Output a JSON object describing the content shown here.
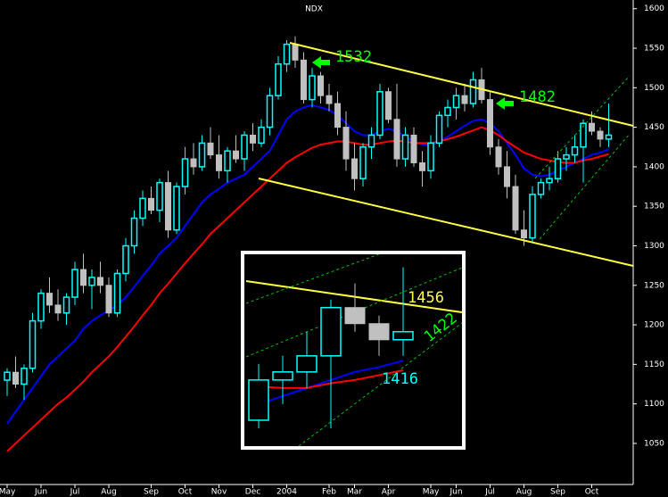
{
  "chart_data": {
    "type": "candlestick",
    "title": "NDX",
    "categories": [
      "May",
      null,
      null,
      null,
      "Jun",
      null,
      null,
      null,
      "Jul",
      null,
      null,
      null,
      "Aug",
      null,
      null,
      null,
      null,
      "Sep",
      null,
      null,
      null,
      "Oct",
      null,
      null,
      null,
      "Nov",
      null,
      null,
      null,
      "Dec",
      null,
      null,
      null,
      "2004",
      null,
      null,
      null,
      null,
      "Feb",
      null,
      null,
      "Mar",
      null,
      null,
      null,
      "Apr",
      null,
      null,
      null,
      null,
      "May",
      null,
      null,
      "Jun",
      null,
      null,
      null,
      "Jul",
      null,
      null,
      null,
      "Aug",
      null,
      null,
      null,
      "Sep",
      null,
      null,
      null,
      "Oct",
      null,
      null
    ],
    "open": [
      1130,
      1140,
      1125,
      1145,
      1205,
      1240,
      1225,
      1215,
      1235,
      1270,
      1250,
      1260,
      1250,
      1215,
      1265,
      1300,
      1335,
      1360,
      1345,
      1380,
      1320,
      1375,
      1410,
      1400,
      1430,
      1415,
      1395,
      1420,
      1410,
      1440,
      1430,
      1450,
      1490,
      1530,
      1555,
      1535,
      1485,
      1515,
      1490,
      1480,
      1450,
      1410,
      1385,
      1425,
      1440,
      1495,
      1460,
      1410,
      1440,
      1405,
      1395,
      1430,
      1465,
      1475,
      1490,
      1480,
      1510,
      1485,
      1425,
      1400,
      1375,
      1320,
      1310,
      1365,
      1380,
      1385,
      1410,
      1415,
      1425,
      1455,
      1445,
      1435
    ],
    "high": [
      1145,
      1160,
      1150,
      1215,
      1245,
      1260,
      1245,
      1240,
      1280,
      1290,
      1270,
      1280,
      1260,
      1270,
      1310,
      1345,
      1370,
      1375,
      1385,
      1395,
      1380,
      1425,
      1430,
      1440,
      1450,
      1440,
      1425,
      1440,
      1445,
      1455,
      1460,
      1500,
      1540,
      1560,
      1565,
      1545,
      1525,
      1520,
      1505,
      1495,
      1470,
      1430,
      1430,
      1450,
      1505,
      1500,
      1505,
      1450,
      1450,
      1420,
      1440,
      1470,
      1485,
      1500,
      1505,
      1520,
      1525,
      1495,
      1435,
      1420,
      1390,
      1345,
      1375,
      1385,
      1400,
      1420,
      1425,
      1440,
      1460,
      1470,
      1450,
      1480
    ],
    "low": [
      1110,
      1120,
      1105,
      1140,
      1195,
      1215,
      1205,
      1200,
      1225,
      1240,
      1220,
      1240,
      1210,
      1210,
      1255,
      1290,
      1325,
      1340,
      1330,
      1310,
      1315,
      1365,
      1390,
      1395,
      1410,
      1385,
      1380,
      1405,
      1395,
      1420,
      1425,
      1440,
      1485,
      1520,
      1525,
      1480,
      1475,
      1480,
      1470,
      1440,
      1395,
      1370,
      1375,
      1410,
      1435,
      1455,
      1400,
      1400,
      1400,
      1375,
      1385,
      1425,
      1450,
      1460,
      1470,
      1475,
      1480,
      1415,
      1390,
      1360,
      1315,
      1300,
      1305,
      1360,
      1370,
      1380,
      1395,
      1405,
      1380,
      1440,
      1425,
      1425
    ],
    "close": [
      1140,
      1125,
      1145,
      1205,
      1240,
      1225,
      1215,
      1235,
      1270,
      1250,
      1260,
      1250,
      1215,
      1265,
      1300,
      1335,
      1360,
      1345,
      1380,
      1320,
      1375,
      1410,
      1400,
      1430,
      1415,
      1395,
      1420,
      1410,
      1440,
      1430,
      1450,
      1490,
      1530,
      1555,
      1535,
      1485,
      1515,
      1490,
      1480,
      1450,
      1410,
      1385,
      1425,
      1440,
      1495,
      1460,
      1410,
      1440,
      1405,
      1395,
      1430,
      1465,
      1475,
      1490,
      1480,
      1510,
      1485,
      1425,
      1400,
      1375,
      1320,
      1310,
      1365,
      1380,
      1385,
      1410,
      1415,
      1425,
      1455,
      1445,
      1435,
      1440
    ],
    "up_color": "#00ffff",
    "down_color": "#c0c0c0",
    "series": [
      {
        "color": "#0000ff",
        "values": [
          1075,
          1090,
          1105,
          1120,
          1135,
          1150,
          1160,
          1170,
          1180,
          1195,
          1205,
          1212,
          1218,
          1225,
          1235,
          1248,
          1262,
          1275,
          1290,
          1300,
          1310,
          1325,
          1340,
          1355,
          1365,
          1372,
          1380,
          1385,
          1390,
          1400,
          1410,
          1420,
          1440,
          1460,
          1470,
          1475,
          1478,
          1475,
          1472,
          1465,
          1455,
          1445,
          1440,
          1440,
          1445,
          1448,
          1445,
          1438,
          1432,
          1428,
          1428,
          1432,
          1438,
          1445,
          1452,
          1458,
          1460,
          1455,
          1445,
          1430,
          1415,
          1398,
          1390,
          1388,
          1390,
          1395,
          1400,
          1405,
          1410,
          1415,
          1418,
          1422
        ]
      },
      {
        "color": "#ff0000",
        "values": [
          1040,
          1050,
          1060,
          1070,
          1080,
          1090,
          1100,
          1108,
          1118,
          1128,
          1140,
          1150,
          1160,
          1172,
          1185,
          1198,
          1212,
          1225,
          1240,
          1252,
          1265,
          1278,
          1290,
          1302,
          1315,
          1325,
          1335,
          1345,
          1355,
          1365,
          1375,
          1385,
          1395,
          1405,
          1412,
          1418,
          1424,
          1428,
          1430,
          1432,
          1432,
          1430,
          1428,
          1428,
          1430,
          1432,
          1433,
          1432,
          1430,
          1430,
          1430,
          1432,
          1435,
          1438,
          1442,
          1446,
          1450,
          1446,
          1440,
          1432,
          1425,
          1418,
          1414,
          1410,
          1408,
          1406,
          1405,
          1405,
          1408,
          1410,
          1413,
          1416
        ]
      }
    ],
    "ylim": [
      998,
      1611
    ],
    "yticks": [
      1050,
      1100,
      1150,
      1200,
      1250,
      1300,
      1350,
      1400,
      1450,
      1500,
      1550,
      1600
    ],
    "annotations": [
      1532,
      1482
    ],
    "inset": {
      "ylim": [
        1370,
        1487
      ],
      "first": 65,
      "labels": [
        1456,
        1422,
        1416
      ]
    }
  }
}
